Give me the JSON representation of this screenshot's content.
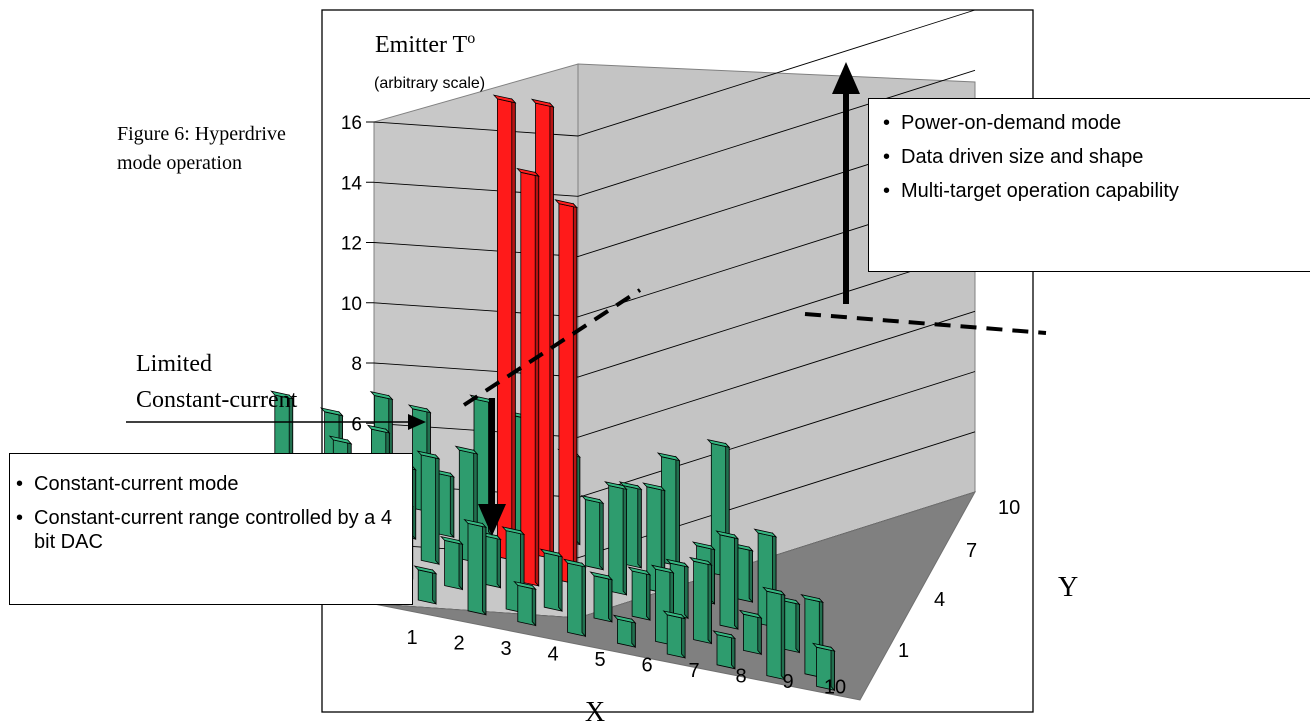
{
  "caption": "Figure 6: Hyperdrive mode operation",
  "chart_data": {
    "type": "bar3d",
    "title": "",
    "zlabel": "Emitter T",
    "zlabel_superscript": "o",
    "zlabel_note": "(arbitrary scale)",
    "xlabel": "X",
    "ylabel": "Y",
    "zlim": [
      0,
      16
    ],
    "z_ticks": [
      6,
      8,
      10,
      12,
      14,
      16
    ],
    "x_ticks": [
      1,
      2,
      3,
      4,
      5,
      6,
      7,
      8,
      9,
      10
    ],
    "y_ticks": [
      1,
      4,
      7,
      10
    ],
    "grid": true,
    "bar_colors": {
      "constant_current": "#2e9c6e",
      "hyperdrive": "#ff1a1a"
    },
    "limited_constant_current_level": 6,
    "hyperdrive_bars": [
      {
        "x": 5,
        "y": 7,
        "value": 15.2
      },
      {
        "x": 6,
        "y": 6,
        "value": 12.5
      },
      {
        "x": 6,
        "y": 8,
        "value": 15.0
      },
      {
        "x": 5,
        "y": 5,
        "value": 13.6
      }
    ],
    "constant_current_bars": [
      {
        "x": 1,
        "y": 1,
        "value": 1.2
      },
      {
        "x": 1,
        "y": 2,
        "value": 0.6
      },
      {
        "x": 1,
        "y": 4,
        "value": 3.7
      },
      {
        "x": 1,
        "y": 6,
        "value": 1.6
      },
      {
        "x": 1,
        "y": 9,
        "value": 3.1
      },
      {
        "x": 2,
        "y": 1,
        "value": 1.0
      },
      {
        "x": 2,
        "y": 3,
        "value": 2.4
      },
      {
        "x": 2,
        "y": 5,
        "value": 4.0
      },
      {
        "x": 2,
        "y": 7,
        "value": 1.8
      },
      {
        "x": 2,
        "y": 9,
        "value": 2.9
      },
      {
        "x": 3,
        "y": 1,
        "value": 2.9
      },
      {
        "x": 3,
        "y": 3,
        "value": 1.5
      },
      {
        "x": 3,
        "y": 5,
        "value": 3.5
      },
      {
        "x": 3,
        "y": 7,
        "value": 2.3
      },
      {
        "x": 3,
        "y": 9,
        "value": 3.8
      },
      {
        "x": 4,
        "y": 1,
        "value": 1.2
      },
      {
        "x": 4,
        "y": 2,
        "value": 2.6
      },
      {
        "x": 4,
        "y": 4,
        "value": 1.6
      },
      {
        "x": 4,
        "y": 6,
        "value": 3.6
      },
      {
        "x": 4,
        "y": 8,
        "value": 2.0
      },
      {
        "x": 4,
        "y": 10,
        "value": 3.3
      },
      {
        "x": 5,
        "y": 1,
        "value": 2.3
      },
      {
        "x": 5,
        "y": 3,
        "value": 1.8
      },
      {
        "x": 5,
        "y": 9,
        "value": 4.4
      },
      {
        "x": 6,
        "y": 1,
        "value": 0.8
      },
      {
        "x": 6,
        "y": 3,
        "value": 1.4
      },
      {
        "x": 6,
        "y": 10,
        "value": 3.8
      },
      {
        "x": 7,
        "y": 1,
        "value": 1.3
      },
      {
        "x": 7,
        "y": 2,
        "value": 2.4
      },
      {
        "x": 7,
        "y": 4,
        "value": 1.5
      },
      {
        "x": 7,
        "y": 6,
        "value": 3.5
      },
      {
        "x": 7,
        "y": 8,
        "value": 2.2
      },
      {
        "x": 7,
        "y": 10,
        "value": 2.9
      },
      {
        "x": 8,
        "y": 1,
        "value": 1.0
      },
      {
        "x": 8,
        "y": 3,
        "value": 2.6
      },
      {
        "x": 8,
        "y": 5,
        "value": 1.7
      },
      {
        "x": 8,
        "y": 7,
        "value": 3.4
      },
      {
        "x": 8,
        "y": 9,
        "value": 2.6
      },
      {
        "x": 9,
        "y": 1,
        "value": 2.8
      },
      {
        "x": 9,
        "y": 3,
        "value": 1.2
      },
      {
        "x": 9,
        "y": 5,
        "value": 3.0
      },
      {
        "x": 9,
        "y": 7,
        "value": 1.8
      },
      {
        "x": 9,
        "y": 10,
        "value": 3.5
      },
      {
        "x": 10,
        "y": 1,
        "value": 1.3
      },
      {
        "x": 10,
        "y": 2,
        "value": 2.5
      },
      {
        "x": 10,
        "y": 4,
        "value": 1.6
      },
      {
        "x": 10,
        "y": 6,
        "value": 3.0
      },
      {
        "x": 10,
        "y": 8,
        "value": 1.7
      },
      {
        "x": 10,
        "y": 10,
        "value": 4.3
      }
    ]
  },
  "annotations": {
    "limited_label": [
      "Limited",
      "Constant-current"
    ],
    "hyperdrive_box": [
      "Power-on-demand mode",
      "Data driven size and shape",
      "Multi-target operation capability"
    ],
    "constant_box": [
      "Constant-current mode",
      "Constant-current range controlled by a 4 bit DAC"
    ]
  }
}
